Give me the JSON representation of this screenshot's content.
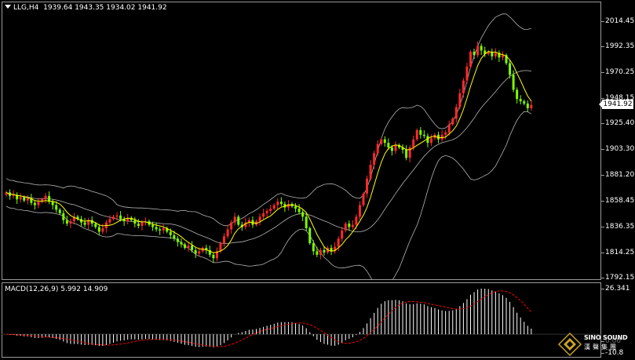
{
  "header": {
    "symbol": "LLG,H4",
    "open": "1939.64",
    "high": "1943.35",
    "low": "1934.02",
    "close": "1941.92"
  },
  "price_axis": {
    "labels": [
      "2014.45",
      "1992.35",
      "1970.25",
      "1948.15",
      "1925.40",
      "1903.30",
      "1881.20",
      "1858.45",
      "1836.35",
      "1814.25",
      "1792.15"
    ],
    "current_price": "1941.92"
  },
  "macd": {
    "label": "MACD(12,26,9)",
    "main_value": "5.992",
    "signal_value": "14.909",
    "axis_labels": [
      "26.341",
      "0.00",
      "-10.8"
    ]
  },
  "watermark": {
    "name": "SINO SOUND",
    "name_cn": "漢聲集團"
  },
  "colors": {
    "background": "#000000",
    "bull_candle": "#ff2a2a",
    "bear_candle": "#7cfc00",
    "fast_ma": "#ffff00",
    "bollinger": "#b4b4b4",
    "macd_hist": "#ffffff",
    "macd_signal": "#ff0000"
  },
  "chart_data": {
    "type": "candlestick",
    "title": "LLG,H4",
    "ylim": [
      1790,
      2020
    ],
    "macd_ylim": [
      -10.8,
      26.341
    ],
    "close": [
      1866,
      1863,
      1864,
      1860,
      1862,
      1859,
      1861,
      1857,
      1855,
      1858,
      1860,
      1863,
      1858,
      1855,
      1851,
      1848,
      1842,
      1839,
      1841,
      1845,
      1843,
      1840,
      1838,
      1842,
      1839,
      1836,
      1832,
      1835,
      1840,
      1843,
      1845,
      1846,
      1843,
      1841,
      1844,
      1842,
      1839,
      1837,
      1840,
      1841,
      1838,
      1836,
      1834,
      1833,
      1835,
      1832,
      1829,
      1826,
      1823,
      1821,
      1818,
      1820,
      1816,
      1813,
      1815,
      1818,
      1816,
      1812,
      1809,
      1815,
      1822,
      1828,
      1834,
      1840,
      1845,
      1838,
      1836,
      1840,
      1842,
      1838,
      1841,
      1845,
      1848,
      1850,
      1852,
      1855,
      1858,
      1856,
      1853,
      1856,
      1854,
      1852,
      1849,
      1845,
      1835,
      1822,
      1815,
      1812,
      1816,
      1814,
      1818,
      1815,
      1819,
      1826,
      1833,
      1839,
      1836,
      1838,
      1845,
      1855,
      1865,
      1878,
      1890,
      1900,
      1908,
      1912,
      1909,
      1905,
      1902,
      1907,
      1905,
      1903,
      1896,
      1905,
      1912,
      1920,
      1916,
      1915,
      1909,
      1913,
      1916,
      1912,
      1916,
      1918,
      1925,
      1930,
      1940,
      1952,
      1963,
      1975,
      1988,
      1985,
      1993,
      1989,
      1986,
      1988,
      1984,
      1987,
      1983,
      1985,
      1978,
      1968,
      1955,
      1947,
      1945,
      1943,
      1939,
      1941.92
    ]
  }
}
